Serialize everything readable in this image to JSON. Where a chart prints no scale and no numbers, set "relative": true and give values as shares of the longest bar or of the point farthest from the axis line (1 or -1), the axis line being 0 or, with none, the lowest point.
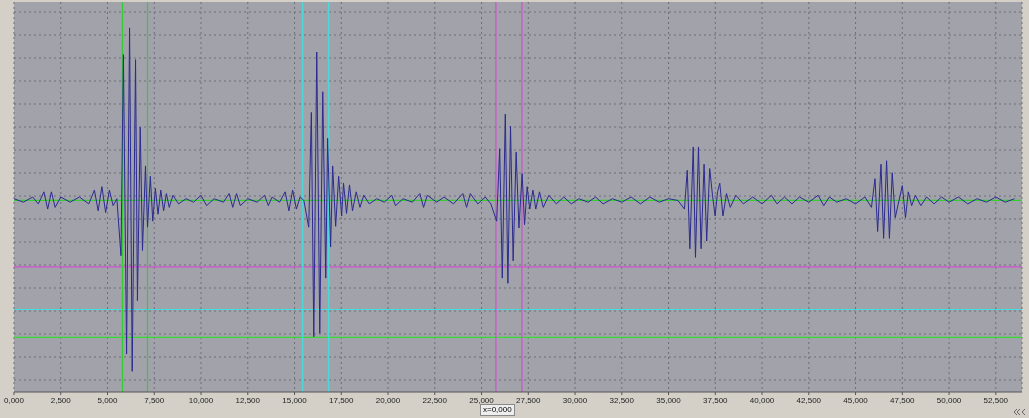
{
  "chart_data": {
    "type": "line",
    "relative": true,
    "grid": true,
    "marker": "none",
    "line_style": "solid",
    "xlim": [
      0,
      53.9
    ],
    "xticks": [
      {
        "value": 0,
        "label": "0,000"
      },
      {
        "value": 2.5,
        "label": "2,500"
      },
      {
        "value": 5,
        "label": "5,000"
      },
      {
        "value": 7.5,
        "label": "7,500"
      },
      {
        "value": 10,
        "label": "10,000"
      },
      {
        "value": 12.5,
        "label": "12,500"
      },
      {
        "value": 15,
        "label": "15,000"
      },
      {
        "value": 17.5,
        "label": "17,500"
      },
      {
        "value": 20,
        "label": "20,000"
      },
      {
        "value": 22.5,
        "label": "22,500"
      },
      {
        "value": 25,
        "label": "25,000"
      },
      {
        "value": 27.5,
        "label": "27,500"
      },
      {
        "value": 30,
        "label": "30,000"
      },
      {
        "value": 32.5,
        "label": "32,500"
      },
      {
        "value": 35,
        "label": "35,000"
      },
      {
        "value": 37.5,
        "label": "37,500"
      },
      {
        "value": 40,
        "label": "40,000"
      },
      {
        "value": 42.5,
        "label": "42,500"
      },
      {
        "value": 45,
        "label": "45,000"
      },
      {
        "value": 47.5,
        "label": "47,500"
      },
      {
        "value": 50,
        "label": "50,000"
      },
      {
        "value": 52.5,
        "label": "52,500"
      }
    ],
    "series": [
      {
        "color": "#2b2b8f",
        "x": [
          0,
          0.5,
          1,
          1.3,
          1.6,
          1.8,
          2,
          2.2,
          2.5,
          3,
          3.5,
          4,
          4.3,
          4.5,
          4.7,
          4.9,
          5.1,
          5.3,
          5.5,
          5.72,
          5.85,
          6.02,
          6.18,
          6.32,
          6.5,
          6.6,
          6.75,
          6.87,
          7.03,
          7.14,
          7.29,
          7.42,
          7.56,
          7.7,
          7.85,
          8,
          8.15,
          8.3,
          8.5,
          8.8,
          9.2,
          9.6,
          10,
          10.3,
          10.7,
          11.2,
          11.5,
          11.7,
          11.9,
          12.1,
          12.5,
          13,
          13.4,
          13.6,
          13.8,
          14.2,
          14.5,
          14.7,
          14.9,
          15.1,
          15.3,
          15.5,
          15.76,
          15.9,
          16.03,
          16.19,
          16.35,
          16.51,
          16.67,
          16.77,
          16.93,
          17.04,
          17.2,
          17.36,
          17.52,
          17.62,
          17.78,
          17.94,
          18.1,
          18.3,
          18.5,
          18.7,
          19,
          19.4,
          19.8,
          20.2,
          20.4,
          20.8,
          21.3,
          21.7,
          21.9,
          22.1,
          22.6,
          23,
          23.5,
          24,
          24.2,
          24.4,
          24.8,
          25.2,
          25.5,
          25.81,
          25.97,
          26.11,
          26.27,
          26.41,
          26.55,
          26.69,
          26.85,
          27,
          27.17,
          27.3,
          27.44,
          27.58,
          27.75,
          27.9,
          28.1,
          28.3,
          28.6,
          29,
          29.4,
          29.8,
          30.2,
          30.7,
          31.1,
          31.5,
          32,
          32.5,
          33,
          33.5,
          34,
          34.5,
          35,
          35.5,
          35.85,
          36,
          36.14,
          36.32,
          36.44,
          36.6,
          36.74,
          36.9,
          37.04,
          37.2,
          37.35,
          37.49,
          37.62,
          37.74,
          37.91,
          38.1,
          38.3,
          38.6,
          39,
          39.5,
          40,
          40.5,
          40.8,
          41.2,
          41.6,
          42,
          42.5,
          43,
          43.3,
          43.6,
          44,
          44.5,
          45,
          45.5,
          45.85,
          46.04,
          46.18,
          46.36,
          46.5,
          46.66,
          46.81,
          46.96,
          47.12,
          47.5,
          47.67,
          47.82,
          48,
          48.2,
          48.49,
          48.8,
          49.2,
          49.6,
          50,
          50.5,
          51,
          51.5,
          52,
          52.5,
          53,
          53.5
        ],
        "values": [
          0.01,
          -0.01,
          0.02,
          -0.02,
          0.05,
          -0.05,
          0.05,
          -0.04,
          0.02,
          -0.01,
          0.02,
          -0.02,
          0.06,
          -0.06,
          0.08,
          -0.07,
          0.06,
          -0.03,
          0.01,
          -0.32,
          0.845,
          -0.89,
          1,
          -0.99,
          0.816,
          -0.58,
          0.425,
          -0.29,
          0.2,
          -0.155,
          0.14,
          -0.12,
          0.07,
          -0.08,
          0.06,
          -0.06,
          0.04,
          -0.04,
          0.03,
          -0.02,
          0.01,
          -0.01,
          0.03,
          -0.03,
          0.01,
          -0.01,
          0.04,
          -0.04,
          0.04,
          -0.03,
          0.01,
          -0.01,
          0.03,
          -0.03,
          0.02,
          -0.01,
          0.05,
          -0.06,
          0.06,
          -0.05,
          0.02,
          0,
          -0.155,
          0.51,
          -0.79,
          0.86,
          -0.77,
          0.63,
          -0.45,
          0.36,
          -0.27,
          0.2,
          -0.15,
          0.14,
          -0.09,
          0.1,
          -0.075,
          0.09,
          -0.06,
          0.05,
          -0.04,
          0.03,
          -0.02,
          0.01,
          -0.01,
          0.03,
          -0.03,
          0.01,
          -0.01,
          0.04,
          -0.04,
          0.03,
          -0.01,
          0.02,
          -0.02,
          0.04,
          -0.04,
          0.04,
          -0.02,
          0.02,
          -0.02,
          -0.12,
          0.3,
          -0.45,
          0.5,
          -0.48,
          0.43,
          -0.35,
          0.28,
          -0.16,
          0.155,
          -0.14,
          0.08,
          -0.05,
          0.06,
          -0.05,
          0.05,
          -0.04,
          0.03,
          -0.02,
          0.02,
          -0.02,
          0.01,
          -0.01,
          0.02,
          -0.02,
          0.01,
          -0.01,
          0.02,
          -0.02,
          0.02,
          -0.01,
          0.01,
          0,
          -0.05,
          0.175,
          -0.28,
          0.31,
          -0.33,
          0.31,
          -0.28,
          0.21,
          -0.235,
          0.185,
          0.03,
          -0.09,
          0.05,
          0.1,
          -0.09,
          0.04,
          -0.04,
          0.03,
          -0.02,
          0.02,
          -0.02,
          0.03,
          -0.02,
          0.02,
          -0.02,
          0.02,
          -0.01,
          0.03,
          -0.03,
          0.02,
          -0.01,
          0.01,
          -0.02,
          0.02,
          -0.04,
          0.126,
          -0.18,
          0.21,
          -0.22,
          0.23,
          -0.22,
          0.16,
          -0.1,
          0.086,
          -0.1,
          0.05,
          -0.03,
          0.03,
          -0.03,
          0.02,
          -0.02,
          0.02,
          -0.01,
          0.02,
          -0.02,
          0.01,
          -0.01,
          0.02,
          -0.01,
          0.01
        ]
      }
    ],
    "ref_lines": [
      {
        "axis": "y",
        "value": 0,
        "color": "#33cc33"
      },
      {
        "axis": "y",
        "value": -0.385,
        "color": "#d050d0"
      },
      {
        "axis": "y",
        "value": -0.632,
        "color": "#40e0e0"
      },
      {
        "axis": "y",
        "value": -0.793,
        "color": "#33dd33"
      },
      {
        "axis": "x",
        "value": 5.8,
        "color": "#33cc33"
      },
      {
        "axis": "x",
        "value": 7.14,
        "color": "#33cc33"
      },
      {
        "axis": "x",
        "value": 15.44,
        "color": "#40e0e0"
      },
      {
        "axis": "x",
        "value": 16.83,
        "color": "#40e0e0"
      },
      {
        "axis": "x",
        "value": 25.77,
        "color": "#d050d0"
      },
      {
        "axis": "x",
        "value": 27.16,
        "color": "#d050d0"
      }
    ],
    "annotations": [
      "x=0,000"
    ]
  }
}
